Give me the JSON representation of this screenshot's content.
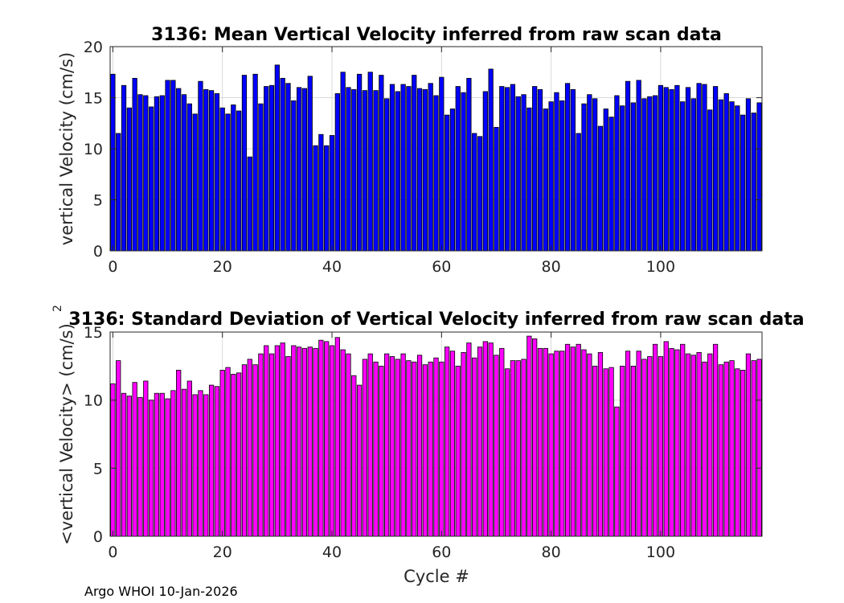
{
  "footer": "Argo WHOI 10-Jan-2026",
  "chart_data": [
    {
      "type": "bar",
      "title": "3136: Mean Vertical Velocity inferred from raw scan data",
      "xlabel": "",
      "ylabel": "vertical Velocity (cm/s)",
      "xlim": [
        -0.5,
        118.5
      ],
      "ylim": [
        0,
        20
      ],
      "xticks": [
        0,
        20,
        40,
        60,
        80,
        100
      ],
      "yticks": [
        0,
        5,
        10,
        15,
        20
      ],
      "grid": true,
      "bar_color": "#0000ff",
      "x_start": 0,
      "values": [
        17.3,
        11.5,
        16.2,
        14.0,
        16.9,
        15.3,
        15.2,
        14.1,
        15.1,
        15.2,
        16.7,
        16.7,
        15.9,
        15.3,
        14.4,
        13.4,
        16.6,
        15.8,
        15.7,
        15.4,
        14.0,
        13.4,
        14.3,
        13.7,
        17.2,
        9.2,
        17.3,
        14.4,
        16.1,
        16.2,
        18.2,
        16.9,
        16.4,
        14.7,
        16.0,
        15.9,
        17.1,
        10.3,
        11.4,
        10.3,
        11.3,
        15.4,
        17.5,
        16.0,
        15.8,
        17.3,
        15.7,
        17.5,
        15.7,
        17.2,
        14.9,
        16.3,
        15.6,
        16.3,
        16.1,
        17.2,
        15.9,
        15.8,
        16.4,
        15.2,
        17.0,
        13.3,
        13.9,
        16.1,
        15.5,
        16.9,
        11.5,
        11.2,
        15.6,
        17.8,
        12.1,
        16.1,
        16.0,
        16.3,
        15.1,
        15.3,
        14.0,
        16.1,
        15.8,
        13.9,
        14.6,
        15.5,
        14.7,
        16.4,
        15.8,
        11.5,
        14.4,
        15.3,
        14.9,
        12.2,
        13.9,
        13.1,
        15.2,
        14.2,
        16.6,
        14.5,
        16.7,
        14.9,
        15.1,
        15.2,
        16.2,
        16.0,
        15.8,
        16.2,
        14.6,
        16.0,
        14.9,
        16.4,
        16.3,
        13.8,
        16.1,
        14.8,
        15.4,
        14.6,
        14.2,
        13.3,
        14.9,
        13.5,
        14.5
      ]
    },
    {
      "type": "bar",
      "title": "3136: Standard Deviation of Vertical Velocity inferred from raw scan data",
      "xlabel": "Cycle #",
      "ylabel": "<vertical Velocity> (cm/s)",
      "ylabel_superscript": "2",
      "xlim": [
        -0.5,
        118.5
      ],
      "ylim": [
        0,
        15
      ],
      "xticks": [
        0,
        20,
        40,
        60,
        80,
        100
      ],
      "yticks": [
        0,
        5,
        10,
        15
      ],
      "grid": true,
      "bar_color": "#ff00ff",
      "x_start": 0,
      "values": [
        11.2,
        12.9,
        10.5,
        10.3,
        11.3,
        10.2,
        11.4,
        10.0,
        10.5,
        10.5,
        10.1,
        10.7,
        12.2,
        10.8,
        11.4,
        10.4,
        10.7,
        10.4,
        11.1,
        11.0,
        12.2,
        12.4,
        11.9,
        12.0,
        12.6,
        13.0,
        12.6,
        13.4,
        14.0,
        13.4,
        14.0,
        14.2,
        13.2,
        14.0,
        13.9,
        13.8,
        13.9,
        13.8,
        14.4,
        14.3,
        14.0,
        14.6,
        13.7,
        13.4,
        11.8,
        11.1,
        13.0,
        13.4,
        12.8,
        12.5,
        13.4,
        13.2,
        13.0,
        13.4,
        12.9,
        12.8,
        13.3,
        12.6,
        12.8,
        13.1,
        12.8,
        13.9,
        13.6,
        12.5,
        13.5,
        14.2,
        13.1,
        13.9,
        14.3,
        14.2,
        13.3,
        13.8,
        12.3,
        12.9,
        12.9,
        13.0,
        14.7,
        14.5,
        13.8,
        13.8,
        13.4,
        13.6,
        13.6,
        14.1,
        13.9,
        14.1,
        13.7,
        13.4,
        12.5,
        13.5,
        12.3,
        12.4,
        9.5,
        12.5,
        13.6,
        12.5,
        13.6,
        13.0,
        13.2,
        14.1,
        13.2,
        14.3,
        13.8,
        13.7,
        14.1,
        13.4,
        13.3,
        13.5,
        12.8,
        13.4,
        14.1,
        12.6,
        12.8,
        12.9,
        12.3,
        12.2,
        13.4,
        12.9,
        13.0
      ]
    }
  ]
}
